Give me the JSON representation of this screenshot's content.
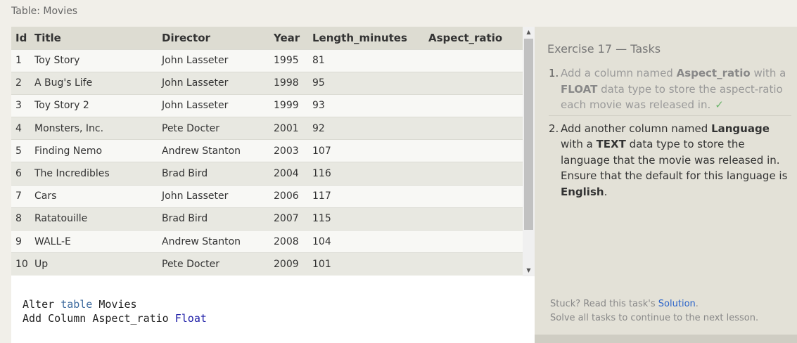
{
  "table_caption": "Table: Movies",
  "table": {
    "columns": [
      "Id",
      "Title",
      "Director",
      "Year",
      "Length_minutes",
      "Aspect_ratio"
    ],
    "rows": [
      [
        "1",
        "Toy Story",
        "John Lasseter",
        "1995",
        "81",
        ""
      ],
      [
        "2",
        "A Bug's Life",
        "John Lasseter",
        "1998",
        "95",
        ""
      ],
      [
        "3",
        "Toy Story 2",
        "John Lasseter",
        "1999",
        "93",
        ""
      ],
      [
        "4",
        "Monsters, Inc.",
        "Pete Docter",
        "2001",
        "92",
        ""
      ],
      [
        "5",
        "Finding Nemo",
        "Andrew Stanton",
        "2003",
        "107",
        ""
      ],
      [
        "6",
        "The Incredibles",
        "Brad Bird",
        "2004",
        "116",
        ""
      ],
      [
        "7",
        "Cars",
        "John Lasseter",
        "2006",
        "117",
        ""
      ],
      [
        "8",
        "Ratatouille",
        "Brad Bird",
        "2007",
        "115",
        ""
      ],
      [
        "9",
        "WALL-E",
        "Andrew Stanton",
        "2008",
        "104",
        ""
      ],
      [
        "10",
        "Up",
        "Pete Docter",
        "2009",
        "101",
        ""
      ]
    ]
  },
  "scrollbar": {
    "up_arrow": "▲",
    "down_arrow": "▼"
  },
  "editor": {
    "line1": {
      "a": "Alter",
      "b": "table",
      "c": "Movies"
    },
    "line2": {
      "a": "Add Column Aspect_ratio",
      "b": "Float"
    }
  },
  "panel": {
    "title": "Exercise 17 — Tasks",
    "tasks": [
      {
        "num": "1.",
        "t1": "Add a column named ",
        "b1": "Aspect_ratio",
        "t2": " with a ",
        "b2": "FLOAT",
        "t3": " data type to store the aspect-ratio each movie was released in.",
        "check": "✓"
      },
      {
        "num": "2.",
        "t1": "Add another column named ",
        "b1": "Language",
        "t2": " with a ",
        "b2": "TEXT",
        "t3": " data type to store the language that the movie was released in. Ensure that the default for this language is ",
        "b3": "English",
        "t4": "."
      }
    ],
    "footer_stuck": "Stuck? Read this task's ",
    "footer_link": "Solution",
    "footer_period": ".",
    "footer_line2": "Solve all tasks to continue to the next lesson."
  },
  "colors": {
    "header_bg": "#dddcd2",
    "row_alt": "#e8e8e1",
    "panel_bg": "#e3e1d7",
    "link": "#2a63c9",
    "check": "#6cb46c"
  }
}
